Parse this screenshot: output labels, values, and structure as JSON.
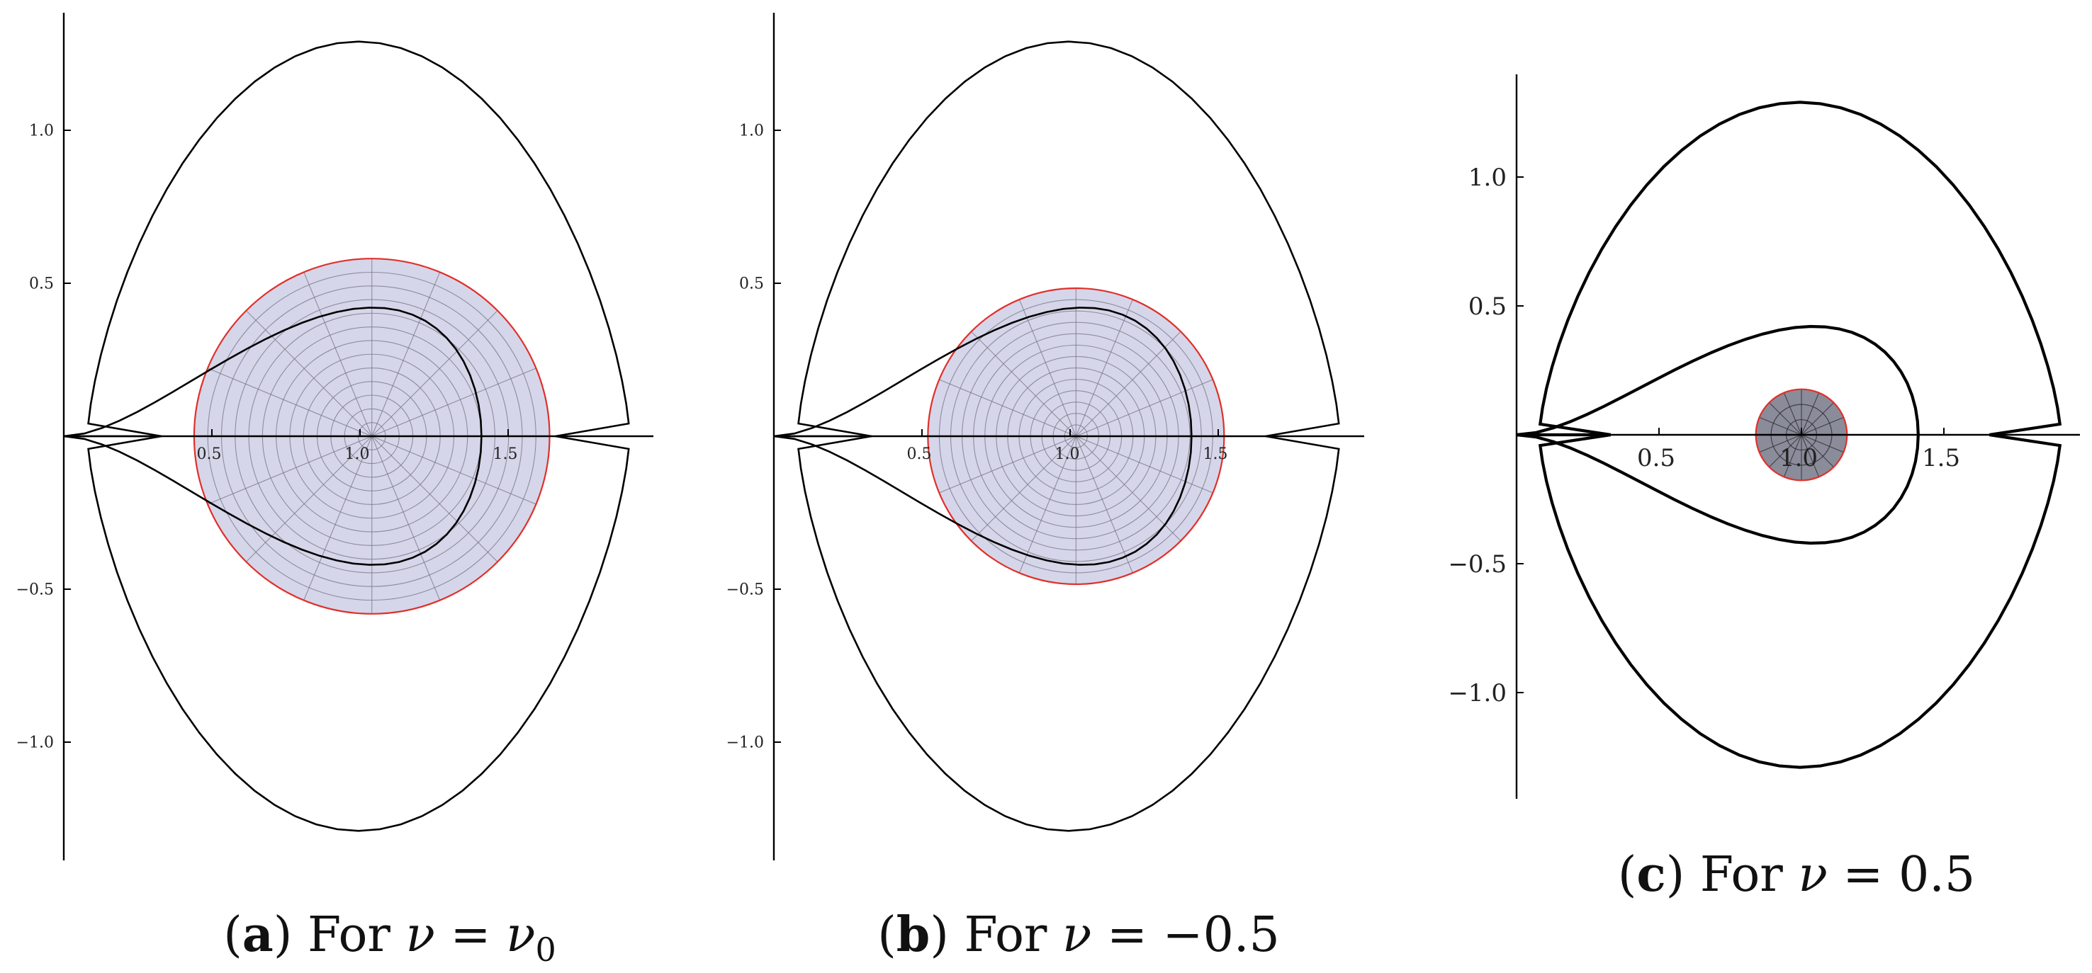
{
  "chart_data": [
    {
      "type": "line",
      "panel_tag": "a",
      "caption_text": "For",
      "caption_var": "ν",
      "caption_eq": "=",
      "caption_rhs": "ν",
      "caption_rhs_sub": "0",
      "x_ticks": [
        "0.5",
        "1.0",
        "1.5"
      ],
      "y_ticks": [
        "1.0",
        "0.5",
        "−0.5",
        "−1.0"
      ],
      "xlim": [
        0,
        2
      ],
      "ylim": [
        -1.38,
        1.38
      ],
      "curves": [
        "outer closed curve",
        "inner loop"
      ],
      "disk": {
        "center_x": 1.04,
        "center_y": 0,
        "radius": 0.6
      },
      "colors": {
        "curve": "#000000",
        "disk_fill": "#d6d6ea",
        "disk_edge": "#e0302a",
        "disk_grid": "#7a7a8a"
      }
    },
    {
      "type": "line",
      "panel_tag": "b",
      "caption_text": "For",
      "caption_var": "ν",
      "caption_eq": "=",
      "caption_rhs": "−0.5",
      "caption_rhs_sub": "",
      "x_ticks": [
        "0.5",
        "1.0",
        "1.5"
      ],
      "y_ticks": [
        "1.0",
        "0.5",
        "−0.5",
        "−1.0"
      ],
      "xlim": [
        0,
        2
      ],
      "ylim": [
        -1.38,
        1.38
      ],
      "curves": [
        "outer closed curve",
        "inner loop"
      ],
      "disk": {
        "center_x": 1.02,
        "center_y": 0,
        "radius": 0.5
      },
      "colors": {
        "curve": "#000000",
        "disk_fill": "#d6d6ea",
        "disk_edge": "#e0302a",
        "disk_grid": "#7a7a8a"
      }
    },
    {
      "type": "line",
      "panel_tag": "c",
      "caption_text": "For",
      "caption_var": "ν",
      "caption_eq": "=",
      "caption_rhs": "0.5",
      "caption_rhs_sub": "",
      "x_ticks": [
        "0.5",
        "1.0",
        "1.5"
      ],
      "y_ticks": [
        "1.0",
        "0.5",
        "−0.5",
        "−1.0"
      ],
      "xlim": [
        0,
        2
      ],
      "ylim": [
        -1.38,
        1.38
      ],
      "curves": [
        "outer closed curve",
        "inner loop"
      ],
      "disk": {
        "center_x": 1.0,
        "center_y": 0,
        "radius": 0.16
      },
      "colors": {
        "curve": "#000000",
        "disk_fill": "#8a8c99",
        "disk_edge": "#e0302a",
        "disk_grid": "#2a2a35"
      }
    }
  ]
}
